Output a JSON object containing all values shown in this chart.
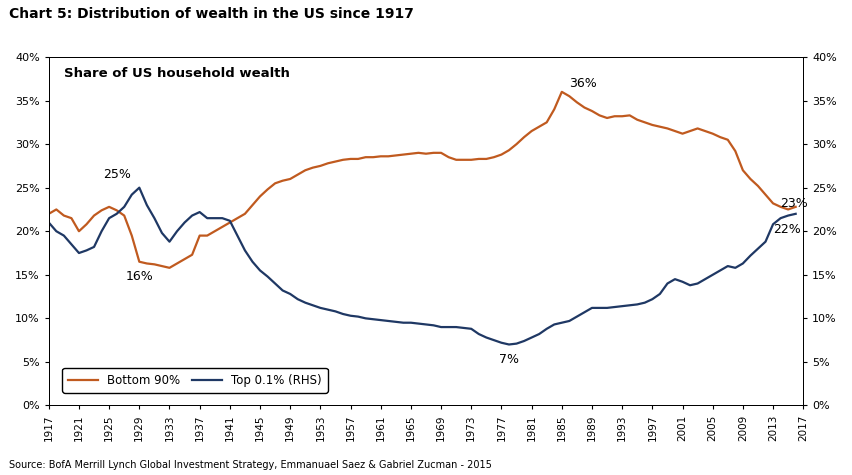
{
  "title": "Chart 5: Distribution of wealth in the US since 1917",
  "subtitle": "Share of US household wealth",
  "source": "Source: BofA Merrill Lynch Global Investment Strategy, Emmanuael Saez & Gabriel Zucman - 2015",
  "legend": [
    "Bottom 90%",
    "Top 0.1% (RHS)"
  ],
  "colors": [
    "#C05A1F",
    "#1F3864"
  ],
  "ylim": [
    0,
    0.4
  ],
  "yticks": [
    0.0,
    0.05,
    0.1,
    0.15,
    0.2,
    0.25,
    0.3,
    0.35,
    0.4
  ],
  "bottom90_years": [
    1917,
    1918,
    1919,
    1920,
    1921,
    1922,
    1923,
    1924,
    1925,
    1926,
    1927,
    1928,
    1929,
    1930,
    1931,
    1932,
    1933,
    1934,
    1935,
    1936,
    1937,
    1938,
    1939,
    1940,
    1941,
    1942,
    1943,
    1944,
    1945,
    1946,
    1947,
    1948,
    1949,
    1950,
    1951,
    1952,
    1953,
    1954,
    1955,
    1956,
    1957,
    1958,
    1959,
    1960,
    1961,
    1962,
    1963,
    1964,
    1965,
    1966,
    1967,
    1968,
    1969,
    1970,
    1971,
    1972,
    1973,
    1974,
    1975,
    1976,
    1977,
    1978,
    1979,
    1980,
    1981,
    1982,
    1983,
    1984,
    1985,
    1986,
    1987,
    1988,
    1989,
    1990,
    1991,
    1992,
    1993,
    1994,
    1995,
    1996,
    1997,
    1998,
    1999,
    2000,
    2001,
    2002,
    2003,
    2004,
    2005,
    2006,
    2007,
    2008,
    2009,
    2010,
    2011,
    2012,
    2013,
    2014,
    2015,
    2016
  ],
  "bottom90_values": [
    0.22,
    0.225,
    0.218,
    0.215,
    0.2,
    0.208,
    0.218,
    0.224,
    0.228,
    0.224,
    0.218,
    0.195,
    0.165,
    0.163,
    0.162,
    0.16,
    0.158,
    0.163,
    0.168,
    0.173,
    0.195,
    0.195,
    0.2,
    0.205,
    0.21,
    0.215,
    0.22,
    0.23,
    0.24,
    0.248,
    0.255,
    0.258,
    0.26,
    0.265,
    0.27,
    0.273,
    0.275,
    0.278,
    0.28,
    0.282,
    0.283,
    0.283,
    0.285,
    0.285,
    0.286,
    0.286,
    0.287,
    0.288,
    0.289,
    0.29,
    0.289,
    0.29,
    0.29,
    0.285,
    0.282,
    0.282,
    0.282,
    0.283,
    0.283,
    0.285,
    0.288,
    0.293,
    0.3,
    0.308,
    0.315,
    0.32,
    0.325,
    0.34,
    0.36,
    0.355,
    0.348,
    0.342,
    0.338,
    0.333,
    0.33,
    0.332,
    0.332,
    0.333,
    0.328,
    0.325,
    0.322,
    0.32,
    0.318,
    0.315,
    0.312,
    0.315,
    0.318,
    0.315,
    0.312,
    0.308,
    0.305,
    0.292,
    0.27,
    0.26,
    0.252,
    0.242,
    0.232,
    0.228,
    0.225,
    0.228
  ],
  "top01_years": [
    1917,
    1918,
    1919,
    1920,
    1921,
    1922,
    1923,
    1924,
    1925,
    1926,
    1927,
    1928,
    1929,
    1930,
    1931,
    1932,
    1933,
    1934,
    1935,
    1936,
    1937,
    1938,
    1939,
    1940,
    1941,
    1942,
    1943,
    1944,
    1945,
    1946,
    1947,
    1948,
    1949,
    1950,
    1951,
    1952,
    1953,
    1954,
    1955,
    1956,
    1957,
    1958,
    1959,
    1960,
    1961,
    1962,
    1963,
    1964,
    1965,
    1966,
    1967,
    1968,
    1969,
    1970,
    1971,
    1972,
    1973,
    1974,
    1975,
    1976,
    1977,
    1978,
    1979,
    1980,
    1981,
    1982,
    1983,
    1984,
    1985,
    1986,
    1987,
    1988,
    1989,
    1990,
    1991,
    1992,
    1993,
    1994,
    1995,
    1996,
    1997,
    1998,
    1999,
    2000,
    2001,
    2002,
    2003,
    2004,
    2005,
    2006,
    2007,
    2008,
    2009,
    2010,
    2011,
    2012,
    2013,
    2014,
    2015,
    2016
  ],
  "top01_values": [
    0.21,
    0.2,
    0.195,
    0.185,
    0.175,
    0.178,
    0.182,
    0.2,
    0.215,
    0.22,
    0.228,
    0.242,
    0.25,
    0.23,
    0.215,
    0.198,
    0.188,
    0.2,
    0.21,
    0.218,
    0.222,
    0.215,
    0.215,
    0.215,
    0.212,
    0.195,
    0.178,
    0.165,
    0.155,
    0.148,
    0.14,
    0.132,
    0.128,
    0.122,
    0.118,
    0.115,
    0.112,
    0.11,
    0.108,
    0.105,
    0.103,
    0.102,
    0.1,
    0.099,
    0.098,
    0.097,
    0.096,
    0.095,
    0.095,
    0.094,
    0.093,
    0.092,
    0.09,
    0.09,
    0.09,
    0.089,
    0.088,
    0.082,
    0.078,
    0.075,
    0.072,
    0.07,
    0.071,
    0.074,
    0.078,
    0.082,
    0.088,
    0.093,
    0.095,
    0.097,
    0.102,
    0.107,
    0.112,
    0.112,
    0.112,
    0.113,
    0.114,
    0.115,
    0.116,
    0.118,
    0.122,
    0.128,
    0.14,
    0.145,
    0.142,
    0.138,
    0.14,
    0.145,
    0.15,
    0.155,
    0.16,
    0.158,
    0.163,
    0.172,
    0.18,
    0.188,
    0.208,
    0.215,
    0.218,
    0.22
  ]
}
